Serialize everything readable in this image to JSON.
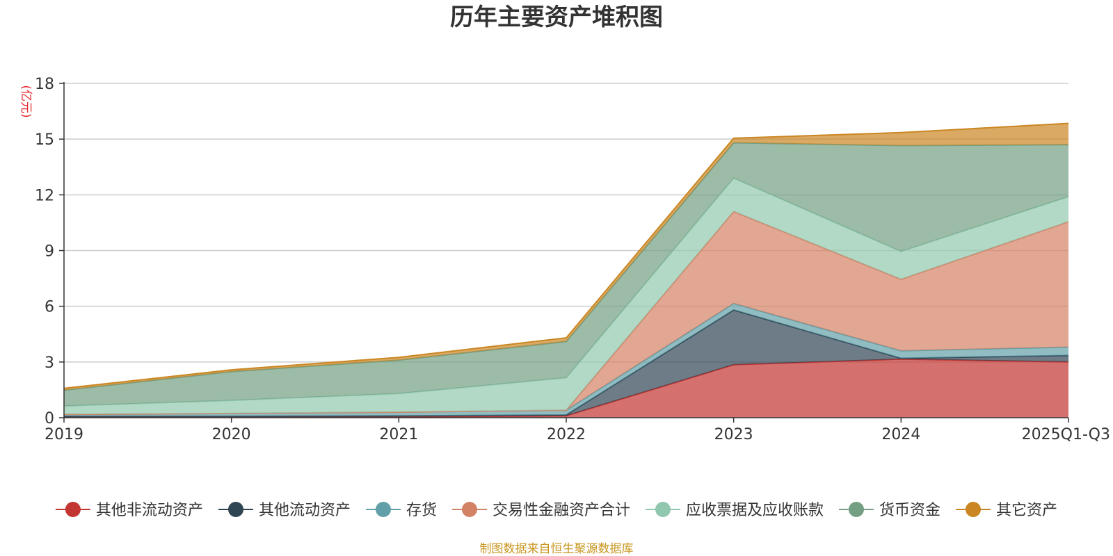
{
  "chart_data": {
    "type": "area",
    "stacked": true,
    "title": "历年主要资产堆积图",
    "unit_label": "(亿元)",
    "categories": [
      "2019",
      "2020",
      "2021",
      "2022",
      "2023",
      "2024",
      "2025Q1-Q3"
    ],
    "y_ticks": [
      "0",
      "3",
      "6",
      "9",
      "12",
      "15",
      "18"
    ],
    "ylim": [
      0,
      18
    ],
    "grid": true,
    "legend_position": "bottom",
    "series": [
      {
        "name": "其他非流动资产",
        "color": "#c23531",
        "values": [
          0.03,
          0.03,
          0.05,
          0.1,
          2.85,
          3.15,
          3.0
        ]
      },
      {
        "name": "其他流动资产",
        "color": "#2f4554",
        "values": [
          0.05,
          0.05,
          0.05,
          0.05,
          2.95,
          0.05,
          0.35
        ]
      },
      {
        "name": "存货",
        "color": "#61a0a8",
        "values": [
          0.1,
          0.15,
          0.2,
          0.25,
          0.35,
          0.4,
          0.45
        ]
      },
      {
        "name": "交易性金融资产合计",
        "color": "#d48265",
        "values": [
          0.0,
          0.0,
          0.0,
          0.0,
          4.95,
          3.85,
          6.75
        ]
      },
      {
        "name": "应收票据及应收账款",
        "color": "#91c7ae",
        "values": [
          0.45,
          0.7,
          1.0,
          1.75,
          1.8,
          1.5,
          1.35
        ]
      },
      {
        "name": "货币资金",
        "color": "#749f83",
        "values": [
          0.85,
          1.55,
          1.8,
          1.95,
          1.9,
          5.7,
          2.8
        ]
      },
      {
        "name": "其它资产",
        "color": "#ca8622",
        "values": [
          0.1,
          0.1,
          0.15,
          0.2,
          0.25,
          0.7,
          1.15
        ]
      }
    ],
    "source_note": "制图数据来自恒生聚源数据库"
  }
}
